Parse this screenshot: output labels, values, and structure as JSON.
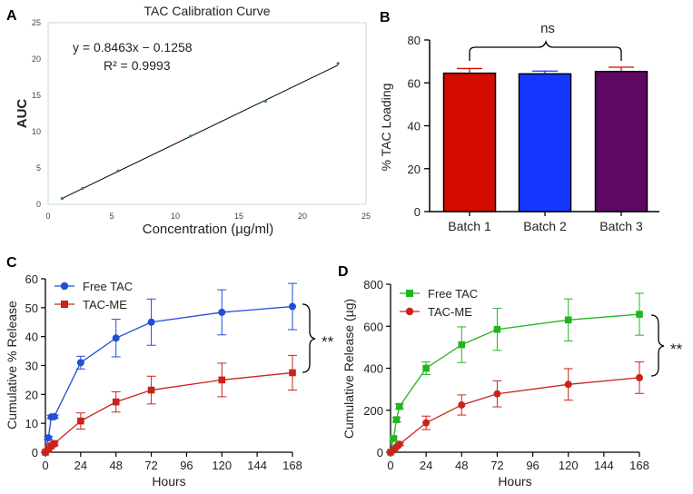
{
  "chart_data": [
    {
      "panel": "A",
      "type": "scatter",
      "title": "TAC Calibration Curve",
      "xlabel": "Concentration (µg/ml)",
      "ylabel": "AUC",
      "xlim": [
        0,
        25
      ],
      "ylim": [
        0,
        25
      ],
      "xticks": [
        0,
        5,
        10,
        15,
        20,
        25
      ],
      "yticks": [
        0,
        5,
        10,
        15,
        20,
        25
      ],
      "equation": "y = 0.8463x − 0.1258",
      "r_squared": "R² = 0.9993",
      "trendline": {
        "slope": 0.8463,
        "intercept": -0.1258,
        "x_range": [
          1,
          22.8
        ]
      },
      "points": {
        "x": [
          1.1,
          2.7,
          5.5,
          11.2,
          17.1,
          22.8
        ],
        "y": [
          0.8,
          2.2,
          4.6,
          9.4,
          14.2,
          19.4
        ]
      },
      "point_color": "#2e7d8c",
      "line_color": "#000000"
    },
    {
      "panel": "B",
      "type": "bar",
      "xlabel": "",
      "ylabel": "% TAC Loading",
      "ylim": [
        0,
        80
      ],
      "yticks": [
        0,
        20,
        40,
        60,
        80
      ],
      "categories": [
        "Batch 1",
        "Batch 2",
        "Batch 3"
      ],
      "values": [
        64.5,
        64.2,
        65.3
      ],
      "errors": [
        2.2,
        1.3,
        2.0
      ],
      "colors": [
        "#d40c00",
        "#1337ff",
        "#5e0763"
      ],
      "error_colors": [
        "#d40c00",
        "#1337ff",
        "#d40c00"
      ],
      "annotation": "ns"
    },
    {
      "panel": "C",
      "type": "line",
      "xlabel": "Hours",
      "ylabel": "Cumulative % Release",
      "xlim": [
        0,
        168
      ],
      "ylim": [
        0,
        60
      ],
      "xticks": [
        0,
        24,
        48,
        72,
        96,
        120,
        144,
        168
      ],
      "yticks": [
        0,
        10,
        20,
        30,
        40,
        50,
        60
      ],
      "legend_position": "top-left",
      "annotation": "**",
      "series": [
        {
          "name": "Free TAC",
          "marker": "circle",
          "color": "#1f4fd6",
          "x": [
            0,
            2,
            4,
            6,
            24,
            48,
            72,
            120,
            168
          ],
          "values": [
            0,
            5,
            12.2,
            12.3,
            31,
            39.5,
            45,
            48.4,
            50.4
          ],
          "errors": [
            0,
            0.5,
            0.6,
            0.6,
            2.2,
            6.5,
            8,
            7.8,
            8
          ]
        },
        {
          "name": "TAC-ME",
          "marker": "square",
          "color": "#c8241b",
          "x": [
            0,
            2,
            4,
            6,
            24,
            48,
            72,
            120,
            168
          ],
          "values": [
            0,
            1,
            2.2,
            3,
            10.8,
            17.4,
            21.5,
            25,
            27.5
          ],
          "errors": [
            0,
            0.3,
            0.4,
            0.5,
            2.8,
            3.5,
            4.8,
            5.8,
            6
          ]
        }
      ]
    },
    {
      "panel": "D",
      "type": "line",
      "xlabel": "Hours",
      "ylabel": "Cumulative Release (µg)",
      "xlim": [
        0,
        168
      ],
      "ylim": [
        0,
        800
      ],
      "xticks": [
        0,
        24,
        48,
        72,
        96,
        120,
        144,
        168
      ],
      "yticks": [
        0,
        200,
        400,
        600,
        800
      ],
      "legend_position": "top-left",
      "annotation": "**",
      "series": [
        {
          "name": "Free TAC",
          "marker": "square",
          "color": "#22b520",
          "x": [
            0,
            2,
            4,
            6,
            24,
            48,
            72,
            120,
            168
          ],
          "values": [
            0,
            65,
            155,
            218,
            400,
            512,
            585,
            630,
            657
          ],
          "errors": [
            0,
            8,
            10,
            12,
            30,
            85,
            100,
            100,
            100
          ]
        },
        {
          "name": "TAC-ME",
          "marker": "circle",
          "color": "#c8241b",
          "x": [
            0,
            2,
            4,
            6,
            24,
            48,
            72,
            120,
            168
          ],
          "values": [
            0,
            10,
            25,
            38,
            140,
            225,
            278,
            323,
            355
          ],
          "errors": [
            0,
            3,
            5,
            6,
            32,
            48,
            62,
            75,
            75
          ]
        }
      ]
    }
  ]
}
